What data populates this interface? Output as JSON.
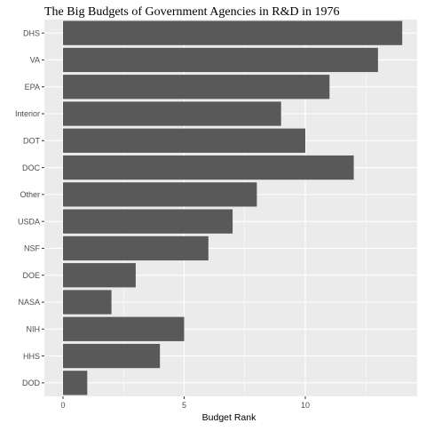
{
  "chart_data": {
    "type": "bar",
    "orientation": "horizontal",
    "title": "The Big Budgets of Government Agencies in R&D in 1976",
    "xlabel": "Budget Rank",
    "ylabel": "",
    "categories": [
      "DHS",
      "VA",
      "EPA",
      "Interior",
      "DOT",
      "DOC",
      "Other",
      "USDA",
      "NSF",
      "DOE",
      "NASA",
      "NIH",
      "HHS",
      "DOD"
    ],
    "values": [
      14,
      13,
      11,
      9,
      10,
      12,
      8,
      7,
      6,
      3,
      2,
      5,
      4,
      1
    ],
    "xlim": [
      0,
      14
    ],
    "x_ticks": [
      0,
      5,
      10
    ],
    "x_tick_labels": [
      "0",
      "5",
      "10"
    ],
    "grid": true,
    "colors": {
      "panel_background": "#EBEBEB",
      "grid_major": "#FFFFFF",
      "bar_fill": "#595959",
      "text": "#4D4D4D"
    }
  }
}
